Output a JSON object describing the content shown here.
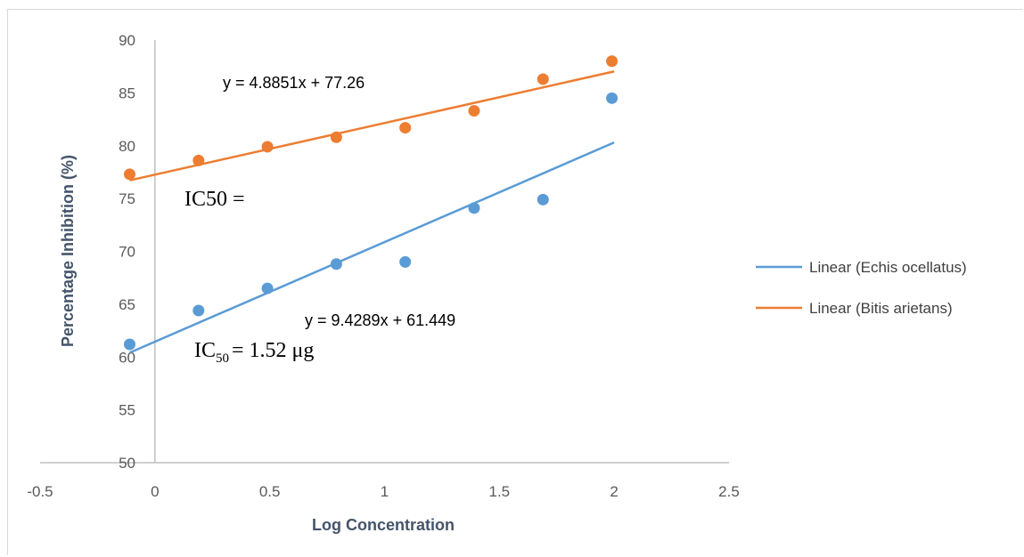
{
  "chart_data": {
    "type": "scatter",
    "title": "",
    "xlabel": "Log Concentration",
    "ylabel": "Percentage Inhibition (%)",
    "xlim": [
      -0.5,
      2.5
    ],
    "ylim": [
      50,
      90
    ],
    "x_ticks": [
      "-0.5",
      "0",
      "0.5",
      "1",
      "1.5",
      "2",
      "2.5"
    ],
    "y_ticks": [
      "50",
      "55",
      "60",
      "65",
      "70",
      "75",
      "80",
      "85",
      "90"
    ],
    "grid": false,
    "legend_position": "right",
    "series": [
      {
        "name": "Echis ocellatus",
        "color": "#5b9bd5",
        "points": [
          [
            -0.11,
            61.2
          ],
          [
            0.19,
            64.4
          ],
          [
            0.49,
            66.5
          ],
          [
            0.79,
            68.8
          ],
          [
            1.09,
            69.0
          ],
          [
            1.39,
            74.1
          ],
          [
            1.69,
            74.9
          ],
          [
            1.99,
            84.5
          ]
        ],
        "trendline": {
          "legend": "Linear (Echis ocellatus)",
          "slope": 9.4289,
          "intercept": 61.449,
          "x_range": [
            -0.11,
            2.0
          ],
          "equation": "y = 9.4289x + 61.449"
        }
      },
      {
        "name": "Bitis arietans",
        "color": "#ed7d31",
        "points": [
          [
            -0.11,
            77.3
          ],
          [
            0.19,
            78.6
          ],
          [
            0.49,
            79.9
          ],
          [
            0.79,
            80.8
          ],
          [
            1.09,
            81.7
          ],
          [
            1.39,
            83.3
          ],
          [
            1.69,
            86.3
          ],
          [
            1.99,
            88.0
          ]
        ],
        "trendline": {
          "legend": "Linear (Bitis arietans)",
          "slope": 4.8851,
          "intercept": 77.26,
          "x_range": [
            -0.11,
            2.0
          ],
          "equation": "y = 4.8851x + 77.26"
        }
      }
    ],
    "annotations": {
      "ic50_top": "IC50 =",
      "ic50_bottom_prefix": "IC",
      "ic50_bottom_sub": "50",
      "ic50_bottom_value": "= 1.52 μg"
    }
  }
}
